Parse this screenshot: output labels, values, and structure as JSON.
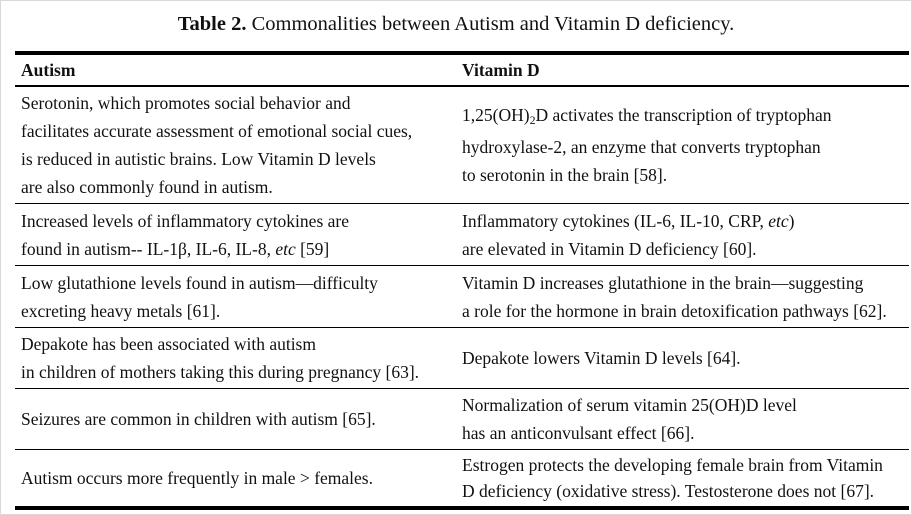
{
  "title": {
    "label": "Table 2.",
    "text": " Commonalities between Autism and Vitamin D deficiency."
  },
  "table": {
    "headers": {
      "autism": "Autism",
      "vitamin_d": "Vitamin D"
    },
    "rows": [
      {
        "autism": [
          [
            "Serotonin, which promotes social behavior and"
          ],
          [
            "facilitates accurate assessment of emotional social cues,"
          ],
          [
            "is reduced in autistic brains. Low Vitamin D levels"
          ],
          [
            "are also commonly found in autism."
          ]
        ],
        "vitamin_d": [
          [
            "1,25(OH)",
            {
              "t": "2",
              "s": "sub"
            },
            "D activates the transcription of tryptophan"
          ],
          [
            "hydroxylase-2, an enzyme that converts tryptophan"
          ],
          [
            "to serotonin in the brain [58]."
          ]
        ]
      },
      {
        "autism": [
          [
            "Increased levels of inflammatory cytokines are"
          ],
          [
            "found in autism-- IL-1β, IL-6, IL-8, ",
            {
              "t": "etc",
              "s": "i"
            },
            " [59]"
          ]
        ],
        "vitamin_d": [
          [
            "Inflammatory cytokines (IL-6, IL-10, CRP, ",
            {
              "t": "etc",
              "s": "i"
            },
            ")"
          ],
          [
            "are elevated in Vitamin D deficiency [60]."
          ]
        ]
      },
      {
        "autism": [
          [
            "Low glutathione levels found in autism—difficulty"
          ],
          [
            "excreting heavy metals [61]."
          ]
        ],
        "vitamin_d": [
          [
            "Vitamin D increases glutathione in the brain—suggesting"
          ],
          [
            "a role for the hormone in brain detoxification pathways [62]."
          ]
        ]
      },
      {
        "autism": [
          [
            "Depakote has been associated with autism"
          ],
          [
            "in children of mothers taking this during pregnancy [63]."
          ]
        ],
        "vitamin_d": [
          [
            "Depakote lowers Vitamin D levels [64]."
          ]
        ]
      },
      {
        "autism": [
          [
            "Seizures are common in children with autism [65]."
          ]
        ],
        "vitamin_d": [
          [
            "Normalization of serum vitamin 25(OH)D level"
          ],
          [
            "has an anticonvulsant effect [66]."
          ]
        ]
      },
      {
        "autism": [
          [
            "Autism occurs more frequently in male > females."
          ]
        ],
        "vitamin_d": [
          [
            "Estrogen protects the developing female brain from Vitamin"
          ],
          [
            "D deficiency (oxidative stress). Testosterone does not [67]."
          ]
        ]
      }
    ]
  }
}
